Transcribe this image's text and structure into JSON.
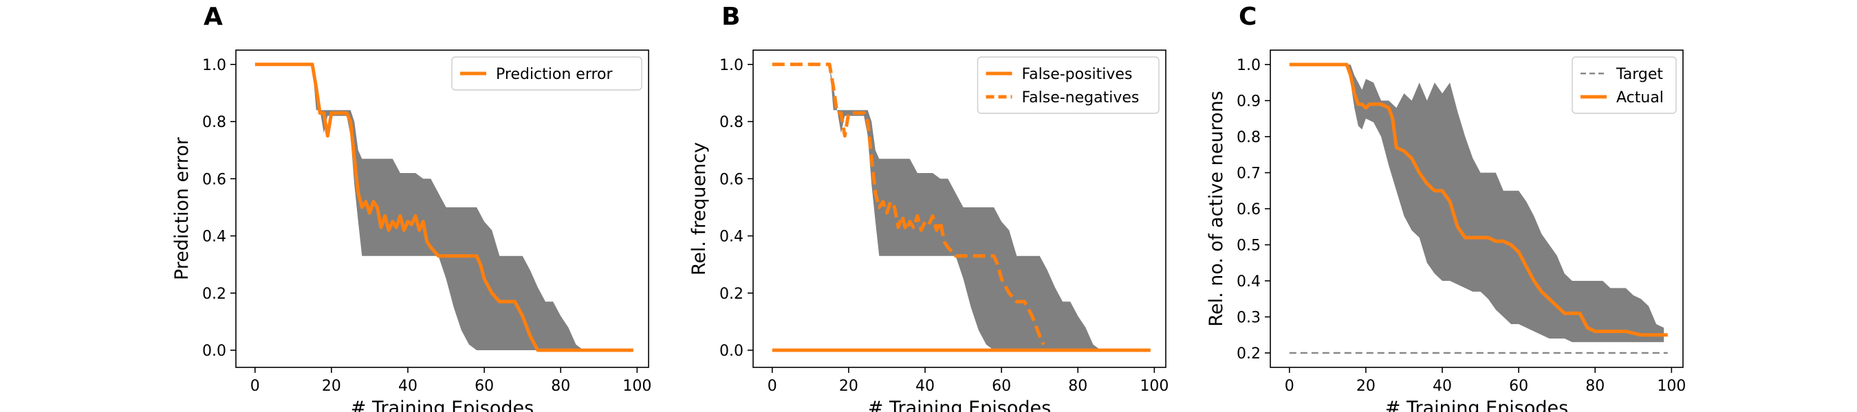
{
  "chart_data": [
    {
      "type": "line",
      "panel_label": "A",
      "xlabel": "# Training Episodes",
      "ylabel": "Prediction error",
      "xlim": [
        -5,
        103
      ],
      "ylim": [
        -0.06,
        1.05
      ],
      "xticks": [
        0,
        20,
        40,
        60,
        80,
        100
      ],
      "yticks": [
        0.0,
        0.2,
        0.4,
        0.6,
        0.8,
        1.0
      ],
      "ytick_labels": [
        "0.0",
        "0.2",
        "0.4",
        "0.6",
        "0.8",
        "1.0"
      ],
      "legend_position": "top-right",
      "band": {
        "x": [
          0,
          15,
          16,
          17,
          18,
          19,
          20,
          21,
          22,
          23,
          24,
          25,
          26,
          27,
          28,
          30,
          32,
          34,
          36,
          38,
          40,
          42,
          44,
          46,
          48,
          50,
          52,
          54,
          56,
          58,
          60,
          62,
          64,
          66,
          68,
          70,
          72,
          74,
          76,
          78,
          80,
          82,
          84,
          86,
          88,
          90,
          95,
          99
        ],
        "upper": [
          1.0,
          1.0,
          0.92,
          0.84,
          0.84,
          0.84,
          0.84,
          0.84,
          0.84,
          0.84,
          0.84,
          0.84,
          0.8,
          0.7,
          0.67,
          0.67,
          0.67,
          0.67,
          0.67,
          0.62,
          0.62,
          0.62,
          0.6,
          0.6,
          0.55,
          0.5,
          0.5,
          0.5,
          0.5,
          0.5,
          0.45,
          0.42,
          0.33,
          0.33,
          0.33,
          0.33,
          0.28,
          0.22,
          0.17,
          0.17,
          0.12,
          0.08,
          0.02,
          0.0,
          0.0,
          0.0,
          0.0,
          0.0
        ],
        "lower": [
          1.0,
          1.0,
          0.84,
          0.84,
          0.76,
          0.82,
          0.82,
          0.82,
          0.82,
          0.82,
          0.82,
          0.75,
          0.58,
          0.45,
          0.33,
          0.33,
          0.33,
          0.33,
          0.33,
          0.33,
          0.33,
          0.33,
          0.33,
          0.33,
          0.33,
          0.25,
          0.15,
          0.07,
          0.02,
          0.0,
          0.0,
          0.0,
          0.0,
          0.0,
          0.0,
          0.0,
          0.0,
          0.0,
          0.0,
          0.0,
          0.0,
          0.0,
          0.0,
          0.0,
          0.0,
          0.0,
          0.0,
          0.0
        ]
      },
      "series": [
        {
          "name": "Prediction error",
          "dash": "solid",
          "x": [
            0,
            15,
            16,
            17,
            18,
            19,
            20,
            21,
            22,
            23,
            24,
            25,
            26,
            27,
            28,
            29,
            30,
            31,
            32,
            33,
            34,
            35,
            36,
            37,
            38,
            39,
            40,
            41,
            42,
            43,
            44,
            45,
            46,
            48,
            50,
            52,
            54,
            56,
            57,
            58,
            59,
            60,
            62,
            64,
            66,
            68,
            70,
            72,
            74,
            80,
            90,
            99
          ],
          "y": [
            1.0,
            1.0,
            0.92,
            0.83,
            0.83,
            0.75,
            0.83,
            0.83,
            0.83,
            0.83,
            0.83,
            0.8,
            0.67,
            0.55,
            0.5,
            0.52,
            0.48,
            0.52,
            0.5,
            0.43,
            0.47,
            0.42,
            0.45,
            0.43,
            0.47,
            0.42,
            0.45,
            0.44,
            0.47,
            0.42,
            0.45,
            0.38,
            0.36,
            0.33,
            0.33,
            0.33,
            0.33,
            0.33,
            0.33,
            0.33,
            0.3,
            0.25,
            0.2,
            0.17,
            0.17,
            0.17,
            0.12,
            0.05,
            0.0,
            0.0,
            0.0,
            0.0
          ]
        }
      ]
    },
    {
      "type": "line",
      "panel_label": "B",
      "xlabel": "# Training Episodes",
      "ylabel": "Rel. frequency",
      "xlim": [
        -5,
        103
      ],
      "ylim": [
        -0.06,
        1.05
      ],
      "xticks": [
        0,
        20,
        40,
        60,
        80,
        100
      ],
      "yticks": [
        0.0,
        0.2,
        0.4,
        0.6,
        0.8,
        1.0
      ],
      "ytick_labels": [
        "0.0",
        "0.2",
        "0.4",
        "0.6",
        "0.8",
        "1.0"
      ],
      "legend_position": "top-right",
      "band": {
        "x": [
          0,
          15,
          16,
          17,
          18,
          19,
          20,
          21,
          22,
          23,
          24,
          25,
          26,
          27,
          28,
          30,
          32,
          34,
          36,
          38,
          40,
          42,
          44,
          46,
          48,
          50,
          52,
          54,
          56,
          58,
          60,
          62,
          64,
          66,
          68,
          70,
          72,
          74,
          76,
          78,
          80,
          82,
          84,
          86,
          88,
          90,
          95,
          99
        ],
        "upper": [
          1.0,
          1.0,
          0.92,
          0.84,
          0.84,
          0.84,
          0.84,
          0.84,
          0.84,
          0.84,
          0.84,
          0.84,
          0.8,
          0.7,
          0.67,
          0.67,
          0.67,
          0.67,
          0.67,
          0.62,
          0.62,
          0.62,
          0.6,
          0.6,
          0.55,
          0.5,
          0.5,
          0.5,
          0.5,
          0.5,
          0.45,
          0.42,
          0.33,
          0.33,
          0.33,
          0.33,
          0.28,
          0.22,
          0.17,
          0.17,
          0.12,
          0.08,
          0.02,
          0.0,
          0.0,
          0.0,
          0.0,
          0.0
        ],
        "lower": [
          1.0,
          1.0,
          0.84,
          0.84,
          0.76,
          0.82,
          0.82,
          0.82,
          0.82,
          0.82,
          0.82,
          0.75,
          0.58,
          0.45,
          0.33,
          0.33,
          0.33,
          0.33,
          0.33,
          0.33,
          0.33,
          0.33,
          0.33,
          0.33,
          0.33,
          0.25,
          0.15,
          0.07,
          0.02,
          0.0,
          0.0,
          0.0,
          0.0,
          0.0,
          0.0,
          0.0,
          0.0,
          0.0,
          0.0,
          0.0,
          0.0,
          0.0,
          0.0,
          0.0,
          0.0,
          0.0,
          0.0,
          0.0
        ]
      },
      "series": [
        {
          "name": "False-positives",
          "dash": "solid",
          "x": [
            0,
            99
          ],
          "y": [
            0.0,
            0.0
          ]
        },
        {
          "name": "False-negatives",
          "dash": "dashed",
          "x": [
            0,
            15,
            16,
            17,
            18,
            19,
            20,
            21,
            22,
            23,
            24,
            25,
            26,
            27,
            28,
            29,
            30,
            31,
            32,
            33,
            34,
            35,
            36,
            37,
            38,
            39,
            40,
            41,
            42,
            43,
            44,
            45,
            46,
            48,
            50,
            52,
            54,
            56,
            57,
            58,
            59,
            60,
            62,
            64,
            66,
            68,
            70,
            71
          ],
          "y": [
            1.0,
            1.0,
            0.92,
            0.83,
            0.83,
            0.75,
            0.83,
            0.83,
            0.83,
            0.83,
            0.83,
            0.8,
            0.67,
            0.55,
            0.5,
            0.52,
            0.48,
            0.52,
            0.5,
            0.43,
            0.47,
            0.42,
            0.45,
            0.43,
            0.47,
            0.42,
            0.45,
            0.44,
            0.47,
            0.42,
            0.45,
            0.38,
            0.36,
            0.33,
            0.33,
            0.33,
            0.33,
            0.33,
            0.33,
            0.33,
            0.3,
            0.25,
            0.2,
            0.17,
            0.17,
            0.12,
            0.05,
            0.02
          ]
        }
      ]
    },
    {
      "type": "line",
      "panel_label": "C",
      "xlabel": "# Training Episodes",
      "ylabel": "Rel. no. of active neurons",
      "xlim": [
        -5,
        103
      ],
      "ylim": [
        0.16,
        1.04
      ],
      "xticks": [
        0,
        20,
        40,
        60,
        80,
        100
      ],
      "yticks": [
        0.2,
        0.3,
        0.4,
        0.5,
        0.6,
        0.7,
        0.8,
        0.9,
        1.0
      ],
      "ytick_labels": [
        "0.2",
        "0.3",
        "0.4",
        "0.5",
        "0.6",
        "0.7",
        "0.8",
        "0.9",
        "1.0"
      ],
      "legend_position": "top-right",
      "band": {
        "x": [
          0,
          15,
          16,
          17,
          18,
          19,
          20,
          22,
          24,
          26,
          28,
          30,
          32,
          34,
          36,
          38,
          40,
          42,
          44,
          46,
          48,
          50,
          52,
          54,
          56,
          58,
          60,
          62,
          64,
          66,
          68,
          70,
          72,
          74,
          76,
          78,
          80,
          82,
          84,
          86,
          88,
          90,
          92,
          94,
          96,
          98
        ],
        "upper": [
          1.0,
          1.0,
          1.0,
          0.97,
          0.95,
          0.93,
          0.96,
          0.95,
          0.9,
          0.9,
          0.88,
          0.92,
          0.9,
          0.95,
          0.9,
          0.95,
          0.92,
          0.95,
          0.87,
          0.8,
          0.74,
          0.7,
          0.7,
          0.7,
          0.65,
          0.65,
          0.65,
          0.62,
          0.58,
          0.53,
          0.5,
          0.47,
          0.42,
          0.4,
          0.4,
          0.4,
          0.4,
          0.4,
          0.38,
          0.38,
          0.38,
          0.36,
          0.35,
          0.33,
          0.28,
          0.27
        ],
        "lower": [
          1.0,
          1.0,
          0.95,
          0.88,
          0.83,
          0.82,
          0.85,
          0.84,
          0.8,
          0.72,
          0.65,
          0.58,
          0.54,
          0.52,
          0.45,
          0.42,
          0.4,
          0.4,
          0.39,
          0.38,
          0.37,
          0.37,
          0.35,
          0.32,
          0.3,
          0.28,
          0.28,
          0.27,
          0.26,
          0.25,
          0.24,
          0.24,
          0.24,
          0.23,
          0.23,
          0.23,
          0.23,
          0.23,
          0.23,
          0.23,
          0.23,
          0.23,
          0.23,
          0.23,
          0.23,
          0.23
        ]
      },
      "series": [
        {
          "name": "Target",
          "dash": "dashed-thin",
          "x": [
            0,
            99
          ],
          "y": [
            0.2,
            0.2
          ]
        },
        {
          "name": "Actual",
          "dash": "solid",
          "x": [
            0,
            15,
            16,
            17,
            18,
            19,
            20,
            21,
            22,
            24,
            26,
            27,
            28,
            30,
            32,
            34,
            36,
            38,
            40,
            42,
            44,
            46,
            48,
            50,
            52,
            54,
            56,
            58,
            60,
            62,
            64,
            66,
            68,
            70,
            72,
            74,
            76,
            78,
            80,
            84,
            88,
            92,
            96,
            99
          ],
          "y": [
            1.0,
            1.0,
            0.97,
            0.92,
            0.89,
            0.89,
            0.88,
            0.89,
            0.89,
            0.89,
            0.88,
            0.85,
            0.77,
            0.76,
            0.74,
            0.7,
            0.67,
            0.65,
            0.65,
            0.62,
            0.55,
            0.52,
            0.52,
            0.52,
            0.52,
            0.51,
            0.51,
            0.5,
            0.48,
            0.44,
            0.4,
            0.37,
            0.35,
            0.33,
            0.31,
            0.31,
            0.31,
            0.27,
            0.26,
            0.26,
            0.26,
            0.25,
            0.25,
            0.25
          ]
        }
      ]
    }
  ],
  "colors": {
    "line": "#ff7f0e",
    "band": "#808080",
    "target": "#888888",
    "axis": "#000000"
  }
}
